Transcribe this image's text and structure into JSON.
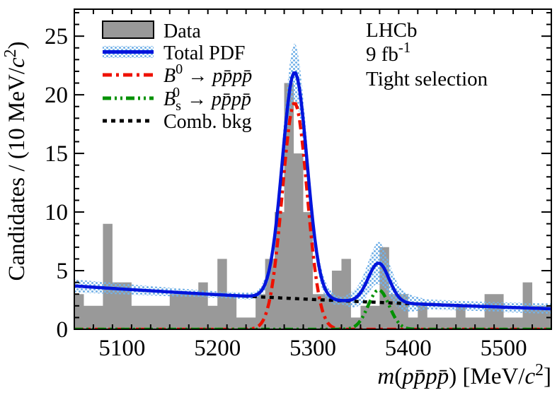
{
  "annotation": {
    "experiment": "LHCb",
    "luminosity_segments": [
      {
        "t": "9 fb"
      },
      {
        "t": "-1",
        "p": "sup"
      }
    ],
    "selection": "Tight selection"
  },
  "legend": {
    "data_label": "Data",
    "total_pdf_label": "Total PDF",
    "b0_label_segments": [
      {
        "t": "B",
        "i": 1
      },
      {
        "t": "0",
        "p": "sup"
      },
      {
        "t": " → "
      },
      {
        "t": "p",
        "i": 1
      },
      {
        "t": "p̄",
        "i": 1
      },
      {
        "t": "p",
        "i": 1
      },
      {
        "t": "p̄",
        "i": 1
      }
    ],
    "bs0_label_segments": [
      {
        "t": "B",
        "i": 1
      },
      {
        "t": "s",
        "p": "sub"
      },
      {
        "t": "0",
        "p": "sup",
        "dx": -12
      },
      {
        "t": " → ",
        "dx": 3
      },
      {
        "t": "p",
        "i": 1
      },
      {
        "t": "p̄",
        "i": 1
      },
      {
        "t": "p",
        "i": 1
      },
      {
        "t": "p̄",
        "i": 1
      }
    ],
    "comb_bkg_label": "Comb. bkg"
  },
  "colors": {
    "histogram": "#999999",
    "total_pdf": "#0014dc",
    "uncertainty_band": "#74b2e8",
    "b0_signal": "#ee1100",
    "bs0_signal": "#009100",
    "comb_bkg": "#000000",
    "axis": "#000000"
  },
  "chart_data": {
    "type": "histogram_with_fit",
    "title": "",
    "xlabel": "m(pp̄pp̄) [MeV/c²]",
    "ylabel": "Candidates / (10 MeV/c²)",
    "xlabel_segments": [
      {
        "t": "m",
        "i": 1
      },
      {
        "t": "("
      },
      {
        "t": "p",
        "i": 1
      },
      {
        "t": "p̄",
        "i": 1
      },
      {
        "t": "p",
        "i": 1
      },
      {
        "t": "p̄",
        "i": 1
      },
      {
        "t": ") [MeV/"
      },
      {
        "t": "c",
        "i": 1
      },
      {
        "t": "2",
        "p": "sup"
      },
      {
        "t": "]"
      }
    ],
    "ylabel_segments": [
      {
        "t": "Candidates / (10 MeV/"
      },
      {
        "t": "c",
        "i": 1
      },
      {
        "t": "2",
        "p": "sup"
      },
      {
        "t": ")"
      }
    ],
    "xlim": [
      5050,
      5550
    ],
    "ylim": [
      0,
      27.3
    ],
    "bin_width": 10,
    "bins_start": 5050,
    "data_counts": [
      3,
      2,
      2,
      9,
      4,
      4,
      2,
      2,
      2,
      2,
      3,
      3,
      3,
      4,
      2,
      6,
      3,
      1,
      1,
      3,
      6,
      10,
      21,
      15,
      10,
      3,
      3,
      5,
      6,
      1,
      2,
      2,
      7,
      3,
      3,
      1,
      2,
      1,
      1,
      1,
      2,
      1,
      1,
      3,
      3,
      1,
      1,
      4,
      2,
      2
    ],
    "x_ticks_major": [
      5100,
      5200,
      5300,
      5400,
      5500
    ],
    "x_minor_step": 20,
    "y_ticks_major": [
      0,
      5,
      10,
      15,
      20,
      25
    ],
    "y_minor_step": 1,
    "curves": {
      "background": {
        "shape": "exponential",
        "y_at_xmin": 3.7,
        "y_at_xmax": 1.75,
        "visible_range": [
          5228,
          5465
        ]
      },
      "signal_b0": {
        "mean": 5281,
        "sigma": 13,
        "amplitude": 19.3
      },
      "signal_bs0": {
        "mean": 5369,
        "sigma": 11,
        "amplitude": 3.35
      },
      "total_pdf": {
        "peak_value_main": 22.0,
        "peak_value_second": 5.65,
        "note": "background + signal_b0 + signal_bs0"
      }
    },
    "uncertainty_band": {
      "half_width_points": [
        [
          5050,
          0.55
        ],
        [
          5120,
          0.42
        ],
        [
          5200,
          0.27
        ],
        [
          5240,
          0.3
        ],
        [
          5258,
          0.8
        ],
        [
          5281,
          2.55
        ],
        [
          5304,
          0.9
        ],
        [
          5330,
          0.3
        ],
        [
          5348,
          0.9
        ],
        [
          5369,
          1.85
        ],
        [
          5392,
          0.9
        ],
        [
          5420,
          0.42
        ],
        [
          5480,
          0.4
        ],
        [
          5550,
          0.45
        ]
      ]
    },
    "legend_entries": [
      "Data",
      "Total PDF",
      "B0 → pp̄pp̄",
      "Bs0 → pp̄pp̄",
      "Comb. bkg"
    ],
    "legend_position": "top-left",
    "grid": false
  }
}
